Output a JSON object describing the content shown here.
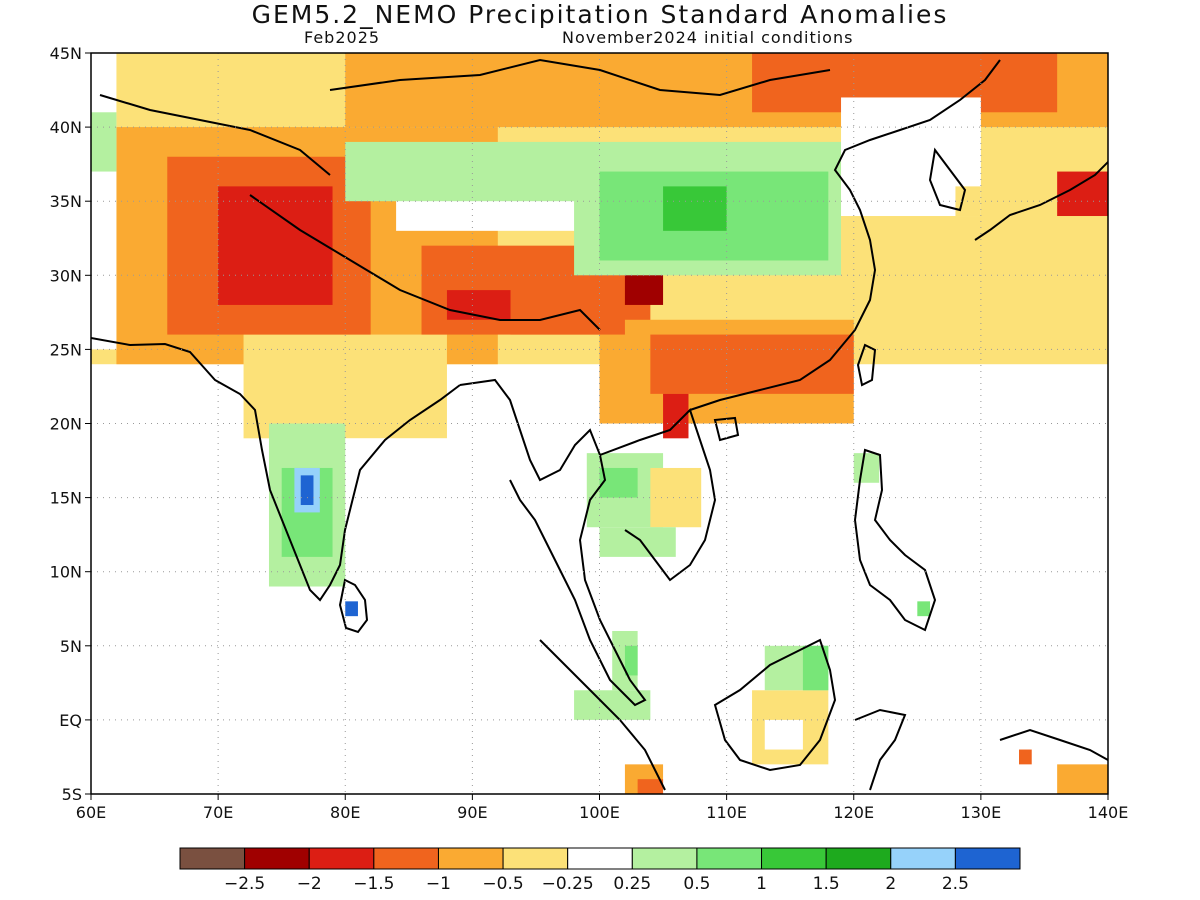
{
  "title": "GEM5.2_NEMO Precipitation Standard Anomalies",
  "subtitle_left": "Feb2025",
  "subtitle_right": "November2024 initial conditions",
  "map": {
    "lon_range": [
      60,
      140
    ],
    "lat_range": [
      -5,
      45
    ],
    "x_ticks": [
      {
        "value": 60,
        "label": "60E"
      },
      {
        "value": 70,
        "label": "70E"
      },
      {
        "value": 80,
        "label": "80E"
      },
      {
        "value": 90,
        "label": "90E"
      },
      {
        "value": 100,
        "label": "100E"
      },
      {
        "value": 110,
        "label": "110E"
      },
      {
        "value": 120,
        "label": "120E"
      },
      {
        "value": 130,
        "label": "130E"
      },
      {
        "value": 140,
        "label": "140E"
      }
    ],
    "y_ticks": [
      {
        "value": 45,
        "label": "45N"
      },
      {
        "value": 40,
        "label": "40N"
      },
      {
        "value": 35,
        "label": "35N"
      },
      {
        "value": 30,
        "label": "30N"
      },
      {
        "value": 25,
        "label": "25N"
      },
      {
        "value": 20,
        "label": "20N"
      },
      {
        "value": 15,
        "label": "15N"
      },
      {
        "value": 10,
        "label": "10N"
      },
      {
        "value": 5,
        "label": "5N"
      },
      {
        "value": 0,
        "label": "EQ"
      },
      {
        "value": -5,
        "label": "5S"
      }
    ],
    "grid": true
  },
  "colorbar": {
    "colors": [
      "#7a5040",
      "#a00000",
      "#dc1e14",
      "#f0641e",
      "#faaa32",
      "#fce178",
      "#ffffff",
      "#b4f0a0",
      "#78e678",
      "#38c838",
      "#1eaa1e",
      "#96d2fa",
      "#1e64d2"
    ],
    "labels": [
      "−2.5",
      "−2",
      "−1.5",
      "−1",
      "−0.5",
      "−0.25",
      "0.25",
      "0.5",
      "1",
      "1.5",
      "2",
      "2.5"
    ]
  },
  "anomaly_regions": [
    {
      "class": -1,
      "lon": [
        60,
        140
      ],
      "lat": [
        24,
        45
      ]
    },
    {
      "class": -2,
      "lon": [
        62,
        92
      ],
      "lat": [
        24,
        40
      ]
    },
    {
      "class": -1,
      "lon": [
        72,
        88
      ],
      "lat": [
        19,
        26
      ]
    },
    {
      "class": -3,
      "lon": [
        66,
        82
      ],
      "lat": [
        26,
        38
      ]
    },
    {
      "class": -4,
      "lon": [
        70,
        79
      ],
      "lat": [
        28,
        36
      ]
    },
    {
      "class": -3,
      "lon": [
        86,
        104
      ],
      "lat": [
        26,
        32
      ]
    },
    {
      "class": -4,
      "lon": [
        88,
        98
      ],
      "lat": [
        27,
        29
      ]
    },
    {
      "class": -2,
      "lon": [
        100,
        120
      ],
      "lat": [
        20,
        27
      ]
    },
    {
      "class": -3,
      "lon": [
        104,
        120
      ],
      "lat": [
        22,
        26
      ]
    },
    {
      "class": -4,
      "lon": [
        105,
        107
      ],
      "lat": [
        19,
        22
      ]
    },
    {
      "class": -2,
      "lon": [
        80,
        140
      ],
      "lat": [
        40,
        45
      ]
    },
    {
      "class": -3,
      "lon": [
        112,
        136
      ],
      "lat": [
        41,
        45
      ]
    },
    {
      "class": -3,
      "lon": [
        93,
        102
      ],
      "lat": [
        26,
        31
      ]
    },
    {
      "class": -5,
      "lon": [
        102,
        105
      ],
      "lat": [
        28,
        31.5
      ]
    },
    {
      "class": 0,
      "lon": [
        84,
        100
      ],
      "lat": [
        33,
        37
      ]
    },
    {
      "class": 1,
      "lon": [
        80,
        100
      ],
      "lat": [
        35,
        39
      ]
    },
    {
      "class": 1,
      "lon": [
        98,
        119
      ],
      "lat": [
        30,
        39
      ]
    },
    {
      "class": 2,
      "lon": [
        100,
        118
      ],
      "lat": [
        31,
        37
      ]
    },
    {
      "class": 3,
      "lon": [
        105,
        110
      ],
      "lat": [
        33,
        36
      ]
    },
    {
      "class": 0,
      "lon": [
        119,
        130
      ],
      "lat": [
        34,
        42
      ]
    },
    {
      "class": -1,
      "lon": [
        128,
        130
      ],
      "lat": [
        34,
        36
      ]
    },
    {
      "class": -4,
      "lon": [
        136,
        140
      ],
      "lat": [
        34,
        37
      ]
    },
    {
      "class": 0,
      "lon": [
        60,
        62
      ],
      "lat": [
        25,
        45
      ]
    },
    {
      "class": 1,
      "lon": [
        60,
        62
      ],
      "lat": [
        37,
        41
      ]
    },
    {
      "class": 0,
      "lon": [
        78,
        100
      ],
      "lat": [
        0,
        19
      ]
    },
    {
      "class": 1,
      "lon": [
        74,
        80
      ],
      "lat": [
        9,
        20
      ]
    },
    {
      "class": 2,
      "lon": [
        75,
        79
      ],
      "lat": [
        11,
        17
      ]
    },
    {
      "class": 5,
      "lon": [
        76,
        78
      ],
      "lat": [
        14,
        17
      ]
    },
    {
      "class": 6,
      "lon": [
        76.5,
        77.5
      ],
      "lat": [
        14.5,
        16.5
      ]
    },
    {
      "class": 6,
      "lon": [
        80,
        81
      ],
      "lat": [
        7,
        8
      ]
    },
    {
      "class": 1,
      "lon": [
        99,
        105
      ],
      "lat": [
        13,
        18
      ]
    },
    {
      "class": 2,
      "lon": [
        100,
        103
      ],
      "lat": [
        15,
        17
      ]
    },
    {
      "class": -1,
      "lon": [
        104,
        108
      ],
      "lat": [
        13,
        17
      ]
    },
    {
      "class": 1,
      "lon": [
        100,
        106
      ],
      "lat": [
        11,
        13
      ]
    },
    {
      "class": 1,
      "lon": [
        101,
        103
      ],
      "lat": [
        2,
        6
      ]
    },
    {
      "class": 2,
      "lon": [
        102,
        103
      ],
      "lat": [
        3,
        5
      ]
    },
    {
      "class": 1,
      "lon": [
        98,
        104
      ],
      "lat": [
        0,
        2
      ]
    },
    {
      "class": -1,
      "lon": [
        112,
        118
      ],
      "lat": [
        -3,
        2
      ]
    },
    {
      "class": 0,
      "lon": [
        113,
        116
      ],
      "lat": [
        -2,
        0
      ]
    },
    {
      "class": 1,
      "lon": [
        113,
        118
      ],
      "lat": [
        2,
        5
      ]
    },
    {
      "class": 2,
      "lon": [
        116,
        118
      ],
      "lat": [
        2,
        5
      ]
    },
    {
      "class": -2,
      "lon": [
        102,
        105
      ],
      "lat": [
        -5,
        -3
      ]
    },
    {
      "class": -3,
      "lon": [
        103,
        105
      ],
      "lat": [
        -5,
        -4
      ]
    },
    {
      "class": -2,
      "lon": [
        136,
        140
      ],
      "lat": [
        -5,
        -3
      ]
    },
    {
      "class": -3,
      "lon": [
        133,
        134
      ],
      "lat": [
        -3,
        -2
      ]
    },
    {
      "class": 1,
      "lon": [
        120,
        122
      ],
      "lat": [
        16,
        18
      ]
    },
    {
      "class": 2,
      "lon": [
        125,
        126
      ],
      "lat": [
        7,
        8
      ]
    }
  ]
}
